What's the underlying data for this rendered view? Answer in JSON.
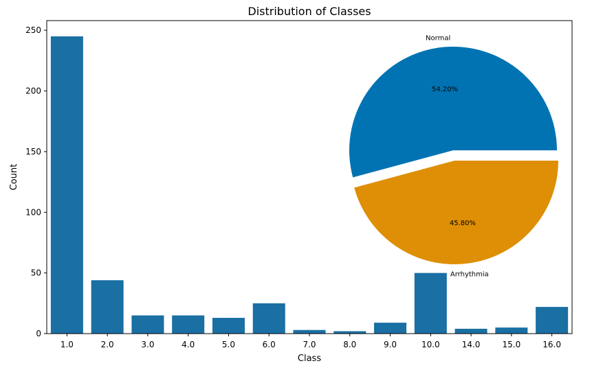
{
  "chart_data": [
    {
      "type": "bar",
      "title": "Distribution of Classes",
      "xlabel": "Class",
      "ylabel": "Count",
      "categories": [
        "1.0",
        "2.0",
        "3.0",
        "4.0",
        "5.0",
        "6.0",
        "7.0",
        "8.0",
        "9.0",
        "10.0",
        "14.0",
        "15.0",
        "16.0"
      ],
      "values": [
        245,
        44,
        15,
        15,
        13,
        25,
        3,
        2,
        9,
        50,
        4,
        5,
        22
      ],
      "ylim": [
        0,
        258
      ],
      "yticks": [
        0,
        50,
        100,
        150,
        200,
        250
      ],
      "color": "#1a6fa3",
      "grid": false
    },
    {
      "type": "pie",
      "labels": [
        "Normal",
        "Arrhythmia"
      ],
      "values": [
        54.2,
        45.8
      ],
      "value_labels": [
        "54.20%",
        "45.80%"
      ],
      "colors": [
        "#0173b2",
        "#de8f05"
      ],
      "explode": [
        0,
        0.1
      ]
    }
  ]
}
